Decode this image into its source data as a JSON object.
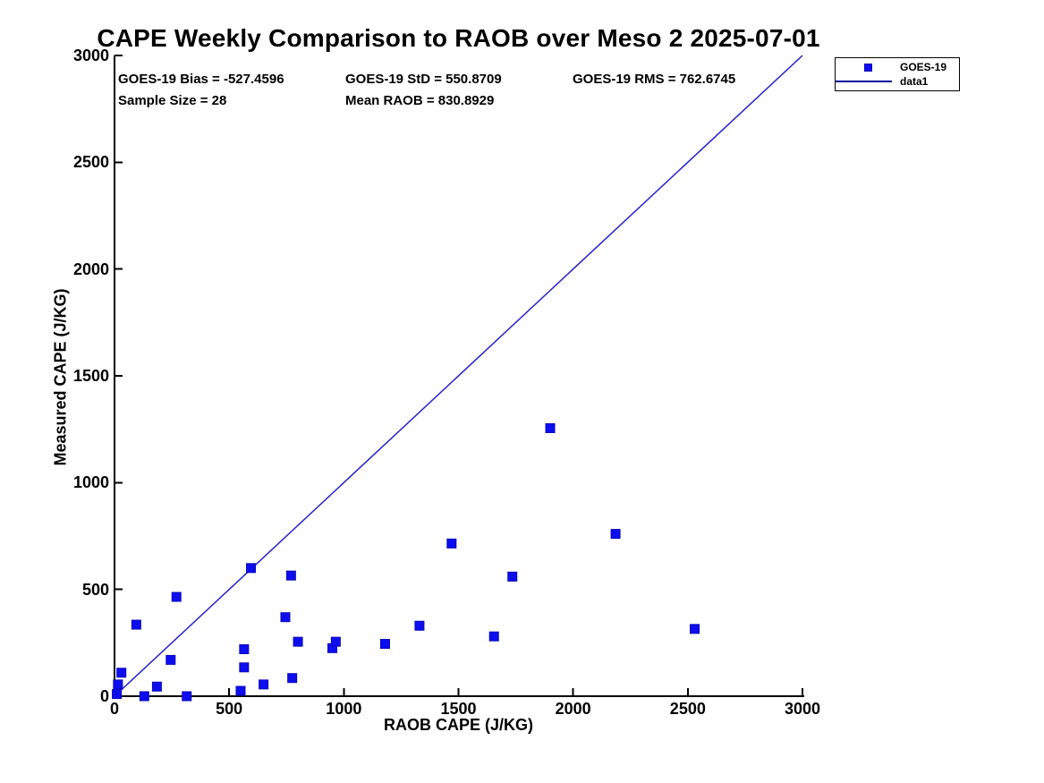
{
  "figure": {
    "title": "CAPE Weekly Comparison to RAOB over Meso 2 2025-07-01"
  },
  "annotations": {
    "bias": "GOES-19 Bias = -527.4596",
    "std": "GOES-19 StD = 550.8709",
    "rms": "GOES-19 RMS = 762.6745",
    "sample_size": "Sample Size = 28",
    "mean_raob": "Mean RAOB = 830.8929"
  },
  "legend": {
    "marker_entry": "GOES-19",
    "line_entry": "data1"
  },
  "colors": {
    "marker_fill": "#0d0df0",
    "marker_edge": "#0909b8",
    "identity_line": "#2222cc",
    "legend_line": "#000099",
    "axis": "#000000"
  },
  "chart_data": {
    "type": "scatter",
    "title": "CAPE Weekly Comparison to RAOB over Meso 2 2025-07-01",
    "xlabel": "RAOB CAPE (J/KG)",
    "ylabel": "Measured CAPE (J/KG)",
    "xlim": [
      0,
      3000
    ],
    "ylim": [
      0,
      3000
    ],
    "x_ticks": [
      0,
      500,
      1000,
      1500,
      2000,
      2500,
      3000
    ],
    "y_ticks": [
      0,
      500,
      1000,
      1500,
      2000,
      2500,
      3000
    ],
    "grid": false,
    "legend_position": "top-right-outside",
    "series": [
      {
        "name": "GOES-19",
        "type": "scatter",
        "marker": "filled-square",
        "points": [
          [
            10,
            10
          ],
          [
            15,
            55
          ],
          [
            30,
            110
          ],
          [
            95,
            335
          ],
          [
            130,
            0
          ],
          [
            185,
            45
          ],
          [
            245,
            170
          ],
          [
            270,
            465
          ],
          [
            315,
            0
          ],
          [
            550,
            25
          ],
          [
            565,
            135
          ],
          [
            565,
            220
          ],
          [
            595,
            600
          ],
          [
            650,
            55
          ],
          [
            745,
            370
          ],
          [
            770,
            565
          ],
          [
            775,
            85
          ],
          [
            800,
            255
          ],
          [
            950,
            225
          ],
          [
            965,
            255
          ],
          [
            1180,
            245
          ],
          [
            1330,
            330
          ],
          [
            1470,
            715
          ],
          [
            1655,
            280
          ],
          [
            1735,
            560
          ],
          [
            1900,
            1255
          ],
          [
            2185,
            760
          ],
          [
            2530,
            315
          ]
        ]
      },
      {
        "name": "data1",
        "type": "line",
        "points": [
          [
            0,
            0
          ],
          [
            3000,
            3000
          ]
        ]
      }
    ],
    "stats": {
      "bias": -527.4596,
      "std": 550.8709,
      "rms": 762.6745,
      "sample_size": 28,
      "mean_raob": 830.8929
    }
  }
}
